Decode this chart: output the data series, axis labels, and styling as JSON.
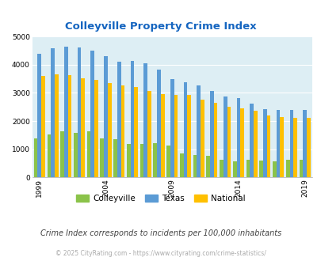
{
  "title": "Colleyville Property Crime Index",
  "years": [
    1999,
    2000,
    2001,
    2002,
    2003,
    2004,
    2005,
    2006,
    2007,
    2008,
    2009,
    2010,
    2011,
    2012,
    2013,
    2014,
    2015,
    2016,
    2017,
    2018,
    2019
  ],
  "colleyville": [
    1380,
    1530,
    1650,
    1580,
    1650,
    1380,
    1350,
    1180,
    1190,
    1230,
    1140,
    840,
    800,
    760,
    620,
    560,
    620,
    600,
    560,
    640,
    640
  ],
  "texas": [
    4390,
    4580,
    4630,
    4620,
    4510,
    4310,
    4100,
    4130,
    4050,
    3830,
    3490,
    3390,
    3270,
    3060,
    2880,
    2830,
    2620,
    2420,
    2410,
    2410,
    2410
  ],
  "national": [
    3590,
    3660,
    3630,
    3510,
    3450,
    3340,
    3260,
    3200,
    3060,
    2970,
    2940,
    2920,
    2750,
    2640,
    2510,
    2460,
    2370,
    2210,
    2140,
    2120,
    2120
  ],
  "colors": {
    "colleyville": "#8bc34a",
    "texas": "#5b9bd5",
    "national": "#ffc000"
  },
  "ylim": [
    0,
    5000
  ],
  "yticks": [
    0,
    1000,
    2000,
    3000,
    4000,
    5000
  ],
  "xlabel_ticks": [
    1999,
    2004,
    2009,
    2014,
    2019
  ],
  "bg_color": "#ddeef4",
  "title_color": "#1565c0",
  "note": "Crime Index corresponds to incidents per 100,000 inhabitants",
  "footer": "© 2025 CityRating.com - https://www.cityrating.com/crime-statistics/",
  "note_color": "#444444",
  "footer_color": "#aaaaaa",
  "bar_width": 0.28,
  "figsize": [
    4.06,
    3.3
  ],
  "dpi": 100
}
